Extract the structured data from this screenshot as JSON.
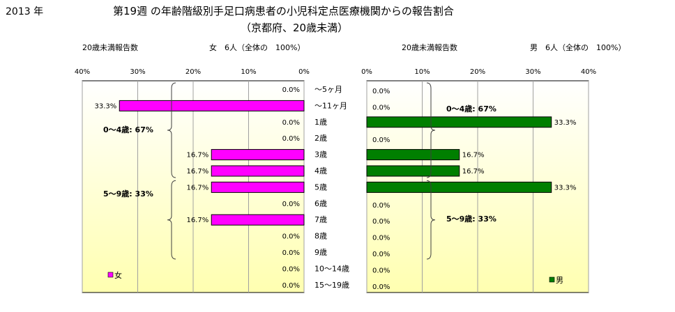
{
  "header": {
    "year": "2013 年",
    "title": "第19週 の年齢階級別手足口病患者の小児科定点医療機関からの報告割合",
    "subtitle": "（京都府、20歳未満）"
  },
  "colors": {
    "female": "#ff00ff",
    "male": "#007f00",
    "plot_bg_top": "#ffffff",
    "plot_bg_bottom": "#ffffb0",
    "grid": "#a0a0a0"
  },
  "chart_data": [
    {
      "type": "bar",
      "orientation": "horizontal",
      "direction": "right-to-left",
      "side": "female",
      "caption": "20歳未満報告数",
      "total_label": "女　6人（全体の　100%）",
      "legend": "女",
      "legend_position": "bottom-left",
      "xlim": [
        0,
        40
      ],
      "ticks": [
        "0%",
        "10%",
        "20%",
        "30%",
        "40%"
      ],
      "grid": true,
      "categories": [
        "～5ヶ月",
        "～11ヶ月",
        "1歳",
        "2歳",
        "3歳",
        "4歳",
        "5歳",
        "6歳",
        "7歳",
        "8歳",
        "9歳",
        "10～14歳",
        "15～19歳"
      ],
      "values": [
        0,
        33.3,
        0,
        0,
        16.7,
        16.7,
        16.7,
        0,
        16.7,
        0,
        0,
        0,
        0
      ],
      "labels": [
        "0.0%",
        "33.3%",
        "0.0%",
        "0.0%",
        "16.7%",
        "16.7%",
        "16.7%",
        "0.0%",
        "16.7%",
        "0.0%",
        "0.0%",
        "0.0%",
        "0.0%"
      ],
      "groups": [
        {
          "label": "0～4歳:  67%",
          "from": 0,
          "to": 5
        },
        {
          "label": "5～9歳:  33%",
          "from": 6,
          "to": 10
        }
      ]
    },
    {
      "type": "bar",
      "orientation": "horizontal",
      "direction": "left-to-right",
      "side": "male",
      "caption": "20歳未満報告数",
      "total_label": "男　6人（全体の　100%）",
      "legend": "男",
      "legend_position": "bottom-right",
      "xlim": [
        0,
        40
      ],
      "ticks": [
        "0%",
        "10%",
        "20%",
        "30%",
        "40%"
      ],
      "grid": true,
      "categories": [
        "～5ヶ月",
        "～11ヶ月",
        "1歳",
        "2歳",
        "3歳",
        "4歳",
        "5歳",
        "6歳",
        "7歳",
        "8歳",
        "9歳",
        "10～14歳",
        "15～19歳"
      ],
      "values": [
        0,
        0,
        33.3,
        0,
        16.7,
        16.7,
        33.3,
        0,
        0,
        0,
        0,
        0,
        0
      ],
      "labels": [
        "0.0%",
        "0.0%",
        "33.3%",
        "0.0%",
        "16.7%",
        "16.7%",
        "33.3%",
        "0.0%",
        "0.0%",
        "0.0%",
        "0.0%",
        "0.0%",
        "0.0%"
      ],
      "groups": [
        {
          "label": "0～4歳:  67%",
          "from": 0,
          "to": 5
        },
        {
          "label": "5～9歳:  33%",
          "from": 6,
          "to": 10
        }
      ]
    }
  ]
}
